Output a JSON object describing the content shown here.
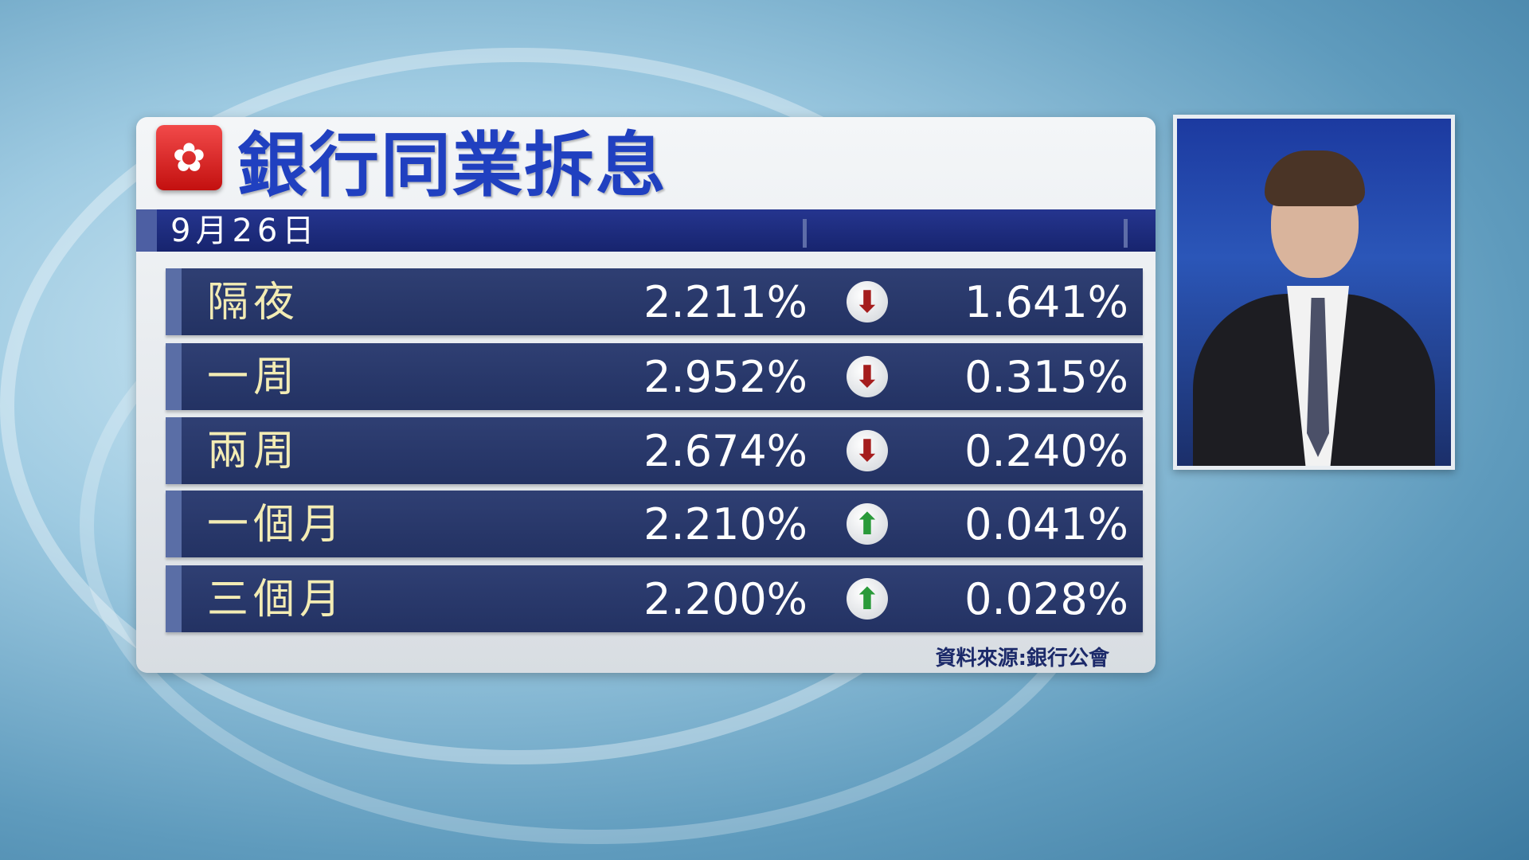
{
  "header": {
    "title": "銀行同業拆息",
    "date": "9月26日",
    "flag_icon": "hong-kong-bauhinia-flag"
  },
  "rows": [
    {
      "term": "隔夜",
      "rate": "2.211%",
      "direction": "down",
      "change": "1.641%"
    },
    {
      "term": "一周",
      "rate": "2.952%",
      "direction": "down",
      "change": "0.315%"
    },
    {
      "term": "兩周",
      "rate": "2.674%",
      "direction": "down",
      "change": "0.240%"
    },
    {
      "term": "一個月",
      "rate": "2.210%",
      "direction": "up",
      "change": "0.041%"
    },
    {
      "term": "三個月",
      "rate": "2.200%",
      "direction": "up",
      "change": "0.028%"
    }
  ],
  "source": "資料來源:銀行公會",
  "colors": {
    "title": "#2040c0",
    "label": "#f3ecb4",
    "down": "#a51d1d",
    "up": "#2a9a3a",
    "row": "#2a3a6c"
  }
}
